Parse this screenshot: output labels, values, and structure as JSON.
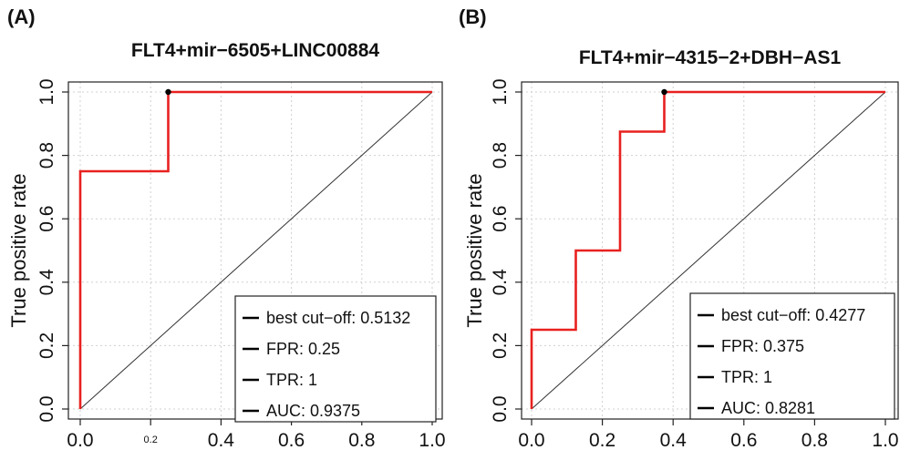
{
  "colors": {
    "roc_line": "#e8211f",
    "diagonal": "#333333",
    "grid": "#d0d0d0",
    "axis": "#222222",
    "text": "#111111",
    "best_point": "#000000"
  },
  "chart_data": [
    {
      "type": "line",
      "panel_label": "(A)",
      "title": "FLT4+mir−6505+LINC00884",
      "xlabel": "",
      "ylabel": "True positive rate",
      "xlim": [
        0,
        1
      ],
      "ylim": [
        0,
        1
      ],
      "grid": true,
      "x_ticks": [
        {
          "value": 0.0,
          "label": "0.0",
          "small": false
        },
        {
          "value": 0.2,
          "label": "0.2",
          "small": true
        },
        {
          "value": 0.4,
          "label": "0.4",
          "small": false
        },
        {
          "value": 0.6,
          "label": "0.6",
          "small": false
        },
        {
          "value": 0.8,
          "label": "0.8",
          "small": false
        },
        {
          "value": 1.0,
          "label": "1.0",
          "small": false
        }
      ],
      "y_ticks": [
        "0.0",
        "0.2",
        "0.4",
        "0.6",
        "0.8",
        "1.0"
      ],
      "series": [
        {
          "x": [
            0,
            0,
            0.25,
            0.25,
            1
          ],
          "y": [
            0,
            0.75,
            0.75,
            1,
            1
          ]
        }
      ],
      "best_point": {
        "x": 0.25,
        "y": 1
      },
      "legend_position": "bottom-right",
      "legend": [
        {
          "label": "best cut−off:",
          "value": "0.5132"
        },
        {
          "label": "FPR:",
          "value": "0.25"
        },
        {
          "label": "TPR:",
          "value": "1"
        },
        {
          "label": "AUC:",
          "value": "0.9375"
        }
      ]
    },
    {
      "type": "line",
      "panel_label": "(B)",
      "title": "FLT4+mir−4315−2+DBH−AS1",
      "xlabel": "",
      "ylabel": "True positive rate",
      "xlim": [
        0,
        1
      ],
      "ylim": [
        0,
        1
      ],
      "grid": true,
      "x_ticks": [
        {
          "value": 0.0,
          "label": "0.0",
          "small": false
        },
        {
          "value": 0.2,
          "label": "0.2",
          "small": false
        },
        {
          "value": 0.4,
          "label": "0.4",
          "small": false
        },
        {
          "value": 0.6,
          "label": "0.6",
          "small": false
        },
        {
          "value": 0.8,
          "label": "0.8",
          "small": false
        },
        {
          "value": 1.0,
          "label": "1.0",
          "small": false
        }
      ],
      "y_ticks": [
        "0.0",
        "0.2",
        "0.4",
        "0.6",
        "0.8",
        "1.0"
      ],
      "series": [
        {
          "x": [
            0,
            0,
            0.125,
            0.125,
            0.25,
            0.25,
            0.375,
            0.375,
            1
          ],
          "y": [
            0,
            0.25,
            0.25,
            0.5,
            0.5,
            0.875,
            0.875,
            1,
            1
          ]
        }
      ],
      "best_point": {
        "x": 0.375,
        "y": 1
      },
      "legend_position": "bottom-right",
      "legend": [
        {
          "label": "best cut−off:",
          "value": "0.4277"
        },
        {
          "label": "FPR:",
          "value": "0.375"
        },
        {
          "label": "TPR:",
          "value": "1"
        },
        {
          "label": "AUC:",
          "value": "0.8281"
        }
      ]
    }
  ]
}
